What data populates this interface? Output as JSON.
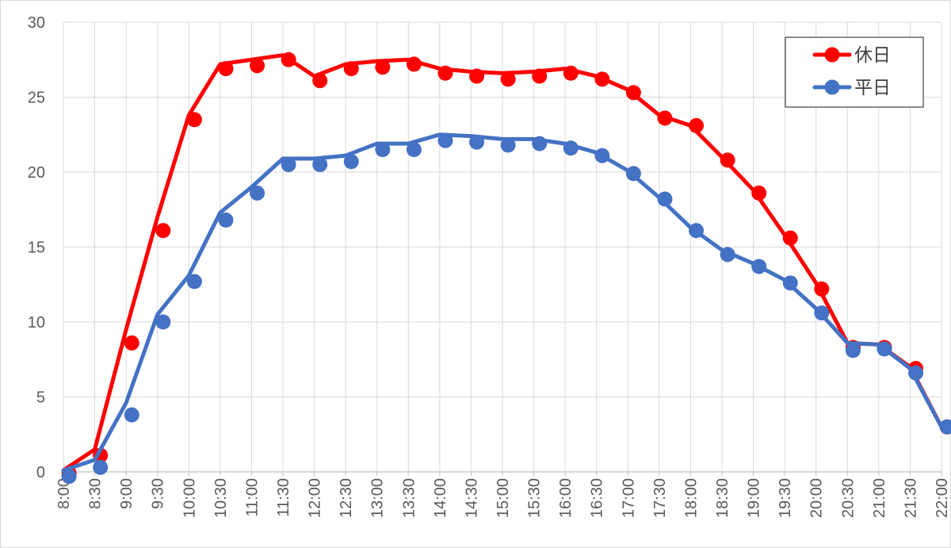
{
  "chart_data": {
    "type": "line",
    "title": "",
    "xlabel": "",
    "ylabel": "",
    "ylim": [
      0,
      30
    ],
    "yticks": [
      0,
      5,
      10,
      15,
      20,
      25,
      30
    ],
    "grid": true,
    "legend_position": "top-right",
    "categories": [
      "8:00",
      "8:30",
      "9:00",
      "9:30",
      "10:00",
      "10:30",
      "11:00",
      "11:30",
      "12:00",
      "12:30",
      "13:00",
      "13:30",
      "14:00",
      "14:30",
      "15:00",
      "15:30",
      "16:00",
      "16:30",
      "17:00",
      "17:30",
      "18:00",
      "18:30",
      "19:00",
      "19:30",
      "20:00",
      "20:30",
      "21:00",
      "21:30",
      "22:00"
    ],
    "series": [
      {
        "name": "休日",
        "color": "#ff0000",
        "line": [
          0.1,
          1.5,
          9.5,
          17.0,
          23.8,
          27.2,
          27.5,
          27.8,
          26.4,
          27.2,
          27.4,
          27.5,
          26.9,
          26.7,
          26.6,
          26.7,
          26.9,
          26.4,
          25.5,
          23.8,
          23.1,
          21.0,
          18.8,
          15.8,
          12.6,
          8.6,
          8.5,
          7.0,
          3.0
        ],
        "points": [
          -0.1,
          1.1,
          8.6,
          16.1,
          23.5,
          26.9,
          27.1,
          27.5,
          26.1,
          26.9,
          27.0,
          27.2,
          26.6,
          26.4,
          26.2,
          26.4,
          26.6,
          26.2,
          25.3,
          23.6,
          23.1,
          20.8,
          18.6,
          15.6,
          12.2,
          8.3,
          8.3,
          6.9,
          3.0
        ]
      },
      {
        "name": "平日",
        "color": "#4472c4",
        "line": [
          0.1,
          0.8,
          4.6,
          10.5,
          13.1,
          17.3,
          19.0,
          20.9,
          20.9,
          21.1,
          21.9,
          21.9,
          22.5,
          22.4,
          22.2,
          22.2,
          21.9,
          21.3,
          20.1,
          18.3,
          16.3,
          14.8,
          13.9,
          12.8,
          10.9,
          8.6,
          8.5,
          6.9,
          3.0
        ],
        "points": [
          -0.3,
          0.3,
          3.8,
          10.0,
          12.7,
          16.8,
          18.6,
          20.5,
          20.5,
          20.7,
          21.5,
          21.5,
          22.1,
          22.0,
          21.8,
          21.9,
          21.6,
          21.1,
          19.9,
          18.2,
          16.1,
          14.5,
          13.7,
          12.6,
          10.6,
          8.1,
          8.2,
          6.6,
          3.0
        ]
      }
    ]
  }
}
